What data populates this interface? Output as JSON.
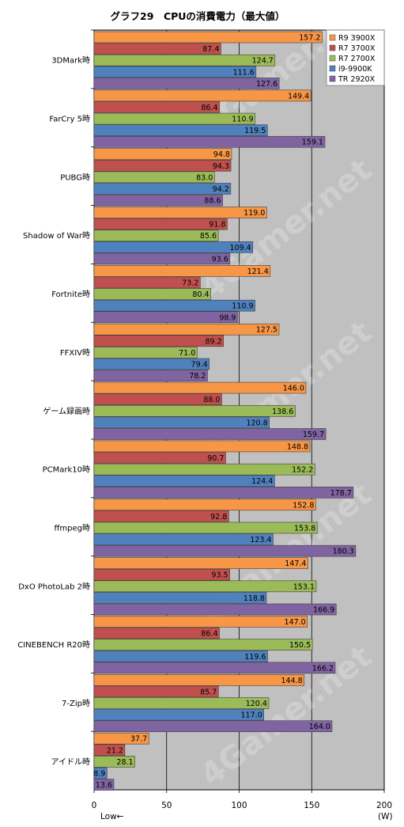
{
  "chart_data": {
    "type": "bar",
    "orientation": "horizontal",
    "title": "グラフ29　CPUの消費電力（最大値）",
    "categories": [
      "3DMark時",
      "FarCry 5時",
      "PUBG時",
      "Shadow of War時",
      "Fortnite時",
      "FFXIV時",
      "ゲーム録画時",
      "PCMark10時",
      "ffmpeg時",
      "DxO PhotoLab 2時",
      "CINEBENCH R20時",
      "7-Zip時",
      "アイドル時"
    ],
    "series": [
      {
        "name": "R9 3900X",
        "color": "#f79646",
        "values": [
          157.2,
          149.4,
          94.8,
          119.0,
          121.4,
          127.5,
          146.0,
          148.8,
          152.8,
          147.4,
          147.0,
          144.8,
          37.7
        ]
      },
      {
        "name": "R7 3700X",
        "color": "#c0504d",
        "values": [
          87.4,
          86.4,
          94.3,
          91.8,
          73.2,
          89.2,
          88.0,
          90.7,
          92.8,
          93.5,
          86.4,
          85.7,
          21.2
        ]
      },
      {
        "name": "R7 2700X",
        "color": "#9bbb59",
        "values": [
          124.7,
          110.9,
          83.0,
          85.6,
          80.4,
          71.0,
          138.6,
          152.2,
          153.8,
          153.1,
          150.5,
          120.4,
          28.1
        ]
      },
      {
        "name": "i9-9900K",
        "color": "#4f81bd",
        "values": [
          111.6,
          119.5,
          94.2,
          109.4,
          110.9,
          79.4,
          120.8,
          124.4,
          123.4,
          118.8,
          119.6,
          117.0,
          8.9
        ]
      },
      {
        "name": "TR 2920X",
        "color": "#8064a2",
        "values": [
          127.6,
          159.1,
          88.6,
          93.6,
          98.9,
          78.2,
          159.7,
          178.7,
          180.3,
          166.9,
          166.2,
          164.0,
          13.6
        ]
      }
    ],
    "xlim": [
      0,
      200
    ],
    "xticks": [
      0,
      50,
      100,
      150,
      200
    ],
    "xlabel": "Low←",
    "unit": "(W)",
    "grid": "vertical",
    "legend_position": "top-right",
    "watermark": "4Gamer.net"
  }
}
